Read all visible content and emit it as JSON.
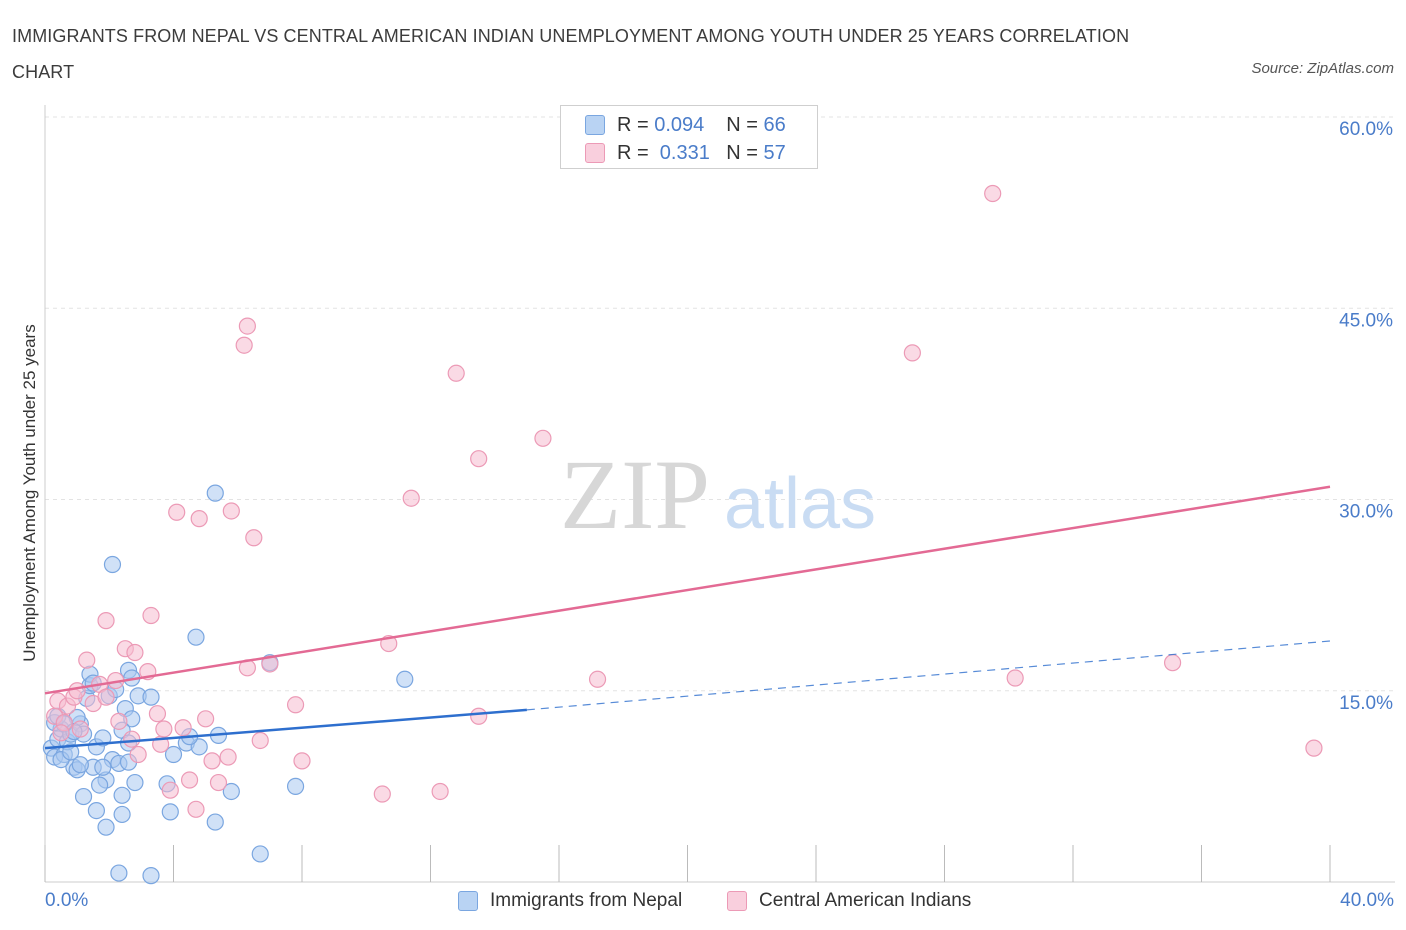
{
  "title": "IMMIGRANTS FROM NEPAL VS CENTRAL AMERICAN INDIAN UNEMPLOYMENT AMONG YOUTH UNDER 25 YEARS CORRELATION CHART",
  "source": "Source: ZipAtlas.com",
  "watermark": {
    "zip": "ZIP",
    "atlas": "atlas"
  },
  "colors": {
    "blue_fill": "#a9c8f0",
    "blue_stroke": "#7aa6e0",
    "blue_line": "#2e6fce",
    "pink_fill": "#f6bcd0",
    "pink_stroke": "#ec9ab6",
    "pink_line": "#e36a94",
    "tick_label": "#4a7cc9",
    "grid": "#e3e3e3"
  },
  "legend_top": {
    "rows": [
      {
        "series": "Immigrants from Nepal",
        "r_label": "R =",
        "r_value": "0.094",
        "n_label": "N =",
        "n_value": "66"
      },
      {
        "series": "Central American Indians",
        "r_label": "R =",
        "r_value": " 0.331",
        "n_label": "N =",
        "n_value": "57"
      }
    ]
  },
  "legend_bottom": [
    "Immigrants from Nepal",
    "Central American Indians"
  ],
  "chart_data": {
    "type": "scatter",
    "title": "IMMIGRANTS FROM NEPAL VS CENTRAL AMERICAN INDIAN UNEMPLOYMENT AMONG YOUTH UNDER 25 YEARS CORRELATION CHART",
    "xlabel": "",
    "ylabel": "Unemployment Among Youth under 25 years",
    "xlim": [
      0,
      40
    ],
    "ylim": [
      0,
      60
    ],
    "x_tick_labels": [
      "0.0%",
      "40.0%"
    ],
    "y_ticks": [
      15,
      30,
      45,
      60
    ],
    "y_tick_labels": [
      "15.0%",
      "30.0%",
      "45.0%",
      "60.0%"
    ],
    "grid": true,
    "legend": "top-center",
    "series": [
      {
        "name": "Immigrants from Nepal",
        "R": 0.094,
        "N": 66,
        "trend": {
          "x0": 0,
          "y0": 10.5,
          "x1": 15,
          "y1": 13.5,
          "dashed_to_x": 40,
          "dashed_to_y": 18.9
        },
        "points": [
          [
            0.2,
            10.5
          ],
          [
            0.3,
            9.8
          ],
          [
            0.4,
            11.2
          ],
          [
            0.5,
            12.0
          ],
          [
            0.3,
            12.5
          ],
          [
            0.6,
            10.0
          ],
          [
            0.7,
            11.0
          ],
          [
            0.8,
            11.6
          ],
          [
            0.9,
            9.0
          ],
          [
            1.0,
            8.8
          ],
          [
            1.1,
            12.4
          ],
          [
            1.2,
            11.6
          ],
          [
            0.5,
            9.6
          ],
          [
            0.4,
            13.0
          ],
          [
            1.3,
            14.4
          ],
          [
            1.5,
            9.0
          ],
          [
            1.6,
            10.6
          ],
          [
            1.8,
            11.3
          ],
          [
            1.4,
            15.4
          ],
          [
            2.0,
            14.6
          ],
          [
            2.2,
            15.1
          ],
          [
            2.5,
            13.6
          ],
          [
            2.7,
            12.8
          ],
          [
            2.9,
            14.6
          ],
          [
            2.4,
            11.9
          ],
          [
            2.6,
            10.9
          ],
          [
            2.1,
            9.6
          ],
          [
            2.3,
            9.3
          ],
          [
            1.9,
            8.0
          ],
          [
            1.7,
            7.6
          ],
          [
            1.2,
            6.7
          ],
          [
            1.6,
            5.6
          ],
          [
            1.9,
            4.3
          ],
          [
            2.4,
            5.3
          ],
          [
            2.4,
            6.8
          ],
          [
            2.8,
            7.8
          ],
          [
            3.8,
            7.7
          ],
          [
            3.9,
            5.5
          ],
          [
            4.0,
            10.0
          ],
          [
            4.4,
            10.9
          ],
          [
            4.8,
            10.6
          ],
          [
            5.4,
            11.5
          ],
          [
            5.3,
            4.7
          ],
          [
            5.8,
            7.1
          ],
          [
            4.7,
            19.2
          ],
          [
            5.3,
            30.5
          ],
          [
            2.1,
            24.9
          ],
          [
            2.6,
            16.6
          ],
          [
            2.7,
            16.0
          ],
          [
            1.4,
            16.3
          ],
          [
            1.5,
            15.6
          ],
          [
            1.0,
            12.9
          ],
          [
            0.6,
            12.4
          ],
          [
            0.9,
            11.8
          ],
          [
            2.3,
            0.7
          ],
          [
            3.3,
            0.5
          ],
          [
            6.7,
            2.2
          ],
          [
            7.0,
            17.2
          ],
          [
            7.8,
            7.5
          ],
          [
            11.2,
            15.9
          ],
          [
            1.8,
            9.0
          ],
          [
            2.6,
            9.4
          ],
          [
            3.3,
            14.5
          ],
          [
            4.5,
            11.4
          ],
          [
            0.8,
            10.2
          ],
          [
            1.1,
            9.2
          ]
        ]
      },
      {
        "name": "Central American Indians",
        "R": 0.331,
        "N": 57,
        "trend": {
          "x0": 0,
          "y0": 14.8,
          "x1": 40,
          "y1": 31.0
        },
        "points": [
          [
            0.3,
            13.0
          ],
          [
            0.4,
            14.2
          ],
          [
            0.6,
            12.5
          ],
          [
            0.7,
            13.8
          ],
          [
            0.9,
            14.5
          ],
          [
            1.1,
            12.0
          ],
          [
            1.3,
            17.4
          ],
          [
            1.5,
            14.0
          ],
          [
            1.7,
            15.5
          ],
          [
            1.9,
            14.5
          ],
          [
            1.9,
            20.5
          ],
          [
            2.3,
            12.6
          ],
          [
            2.5,
            18.3
          ],
          [
            2.8,
            18.0
          ],
          [
            3.2,
            16.5
          ],
          [
            3.3,
            20.9
          ],
          [
            2.7,
            11.2
          ],
          [
            2.9,
            10.0
          ],
          [
            3.6,
            10.8
          ],
          [
            3.7,
            12.0
          ],
          [
            3.9,
            7.2
          ],
          [
            4.3,
            12.1
          ],
          [
            4.5,
            8.0
          ],
          [
            4.7,
            5.7
          ],
          [
            5.0,
            12.8
          ],
          [
            5.2,
            9.5
          ],
          [
            5.4,
            7.8
          ],
          [
            5.7,
            9.8
          ],
          [
            6.3,
            16.8
          ],
          [
            6.7,
            11.1
          ],
          [
            7.0,
            17.1
          ],
          [
            7.8,
            13.9
          ],
          [
            8.0,
            9.5
          ],
          [
            4.1,
            29.0
          ],
          [
            4.8,
            28.5
          ],
          [
            5.8,
            29.1
          ],
          [
            6.5,
            27.0
          ],
          [
            6.2,
            42.1
          ],
          [
            6.3,
            43.6
          ],
          [
            10.5,
            6.9
          ],
          [
            10.7,
            18.7
          ],
          [
            11.4,
            30.1
          ],
          [
            12.3,
            7.1
          ],
          [
            12.8,
            39.9
          ],
          [
            13.5,
            13.0
          ],
          [
            13.5,
            33.2
          ],
          [
            15.5,
            34.8
          ],
          [
            17.2,
            15.9
          ],
          [
            27.0,
            41.5
          ],
          [
            29.5,
            54.0
          ],
          [
            30.2,
            16.0
          ],
          [
            35.1,
            17.2
          ],
          [
            39.5,
            10.5
          ],
          [
            1.0,
            15.0
          ],
          [
            2.2,
            15.8
          ],
          [
            3.5,
            13.2
          ],
          [
            0.5,
            11.7
          ]
        ]
      }
    ]
  }
}
